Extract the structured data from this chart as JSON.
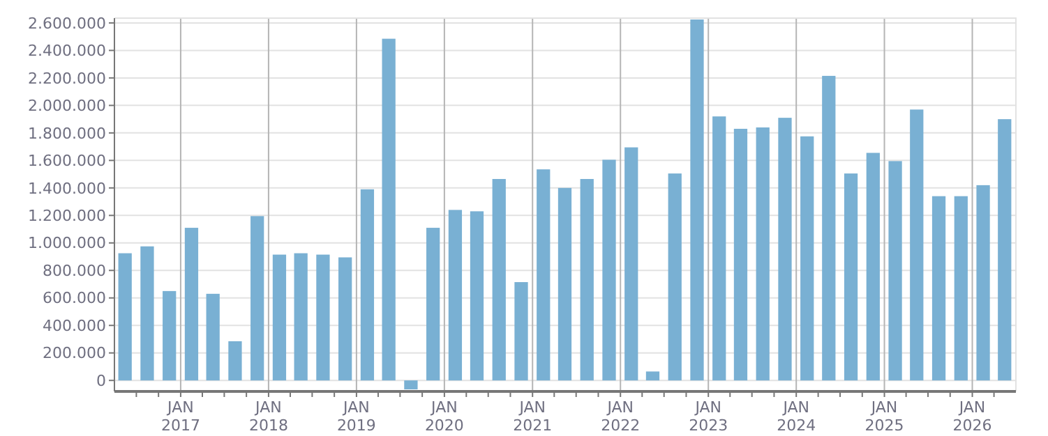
{
  "chart_data": {
    "type": "bar",
    "x": [
      "2016-05-15",
      "2016-08-15",
      "2016-11-15",
      "2017-02-15",
      "2017-05-15",
      "2017-08-15",
      "2017-11-15",
      "2018-02-15",
      "2018-05-15",
      "2018-08-15",
      "2018-11-15",
      "2019-02-15",
      "2019-05-15",
      "2019-08-15",
      "2019-11-15",
      "2020-02-15",
      "2020-05-15",
      "2020-08-15",
      "2020-11-15",
      "2021-02-15",
      "2021-05-15",
      "2021-08-15",
      "2021-11-15",
      "2022-02-15",
      "2022-05-15",
      "2022-08-15",
      "2022-11-15",
      "2023-02-15",
      "2023-05-15",
      "2023-08-15",
      "2023-11-15",
      "2024-02-15",
      "2024-05-15",
      "2024-08-15",
      "2024-11-15",
      "2025-02-15",
      "2025-05-15",
      "2025-08-15",
      "2025-11-15",
      "2026-02-15",
      "2026-05-15"
    ],
    "values": [
      925000,
      975000,
      650000,
      1110000,
      630000,
      285000,
      1195000,
      915000,
      925000,
      915000,
      895000,
      1390000,
      2485000,
      -65000,
      1110000,
      1240000,
      1230000,
      1465000,
      715000,
      1535000,
      1400000,
      1465000,
      1605000,
      1695000,
      65000,
      1505000,
      2625000,
      1920000,
      1830000,
      1840000,
      1910000,
      1775000,
      2215000,
      1505000,
      1655000,
      1595000,
      1970000,
      1340000,
      1340000,
      1420000,
      1900000
    ],
    "color": "#79b0d3",
    "ylim": [
      -80000,
      2635000
    ],
    "yticks": [
      0,
      {
        "value": 200000,
        "label": "200.000"
      },
      {
        "value": 400000,
        "label": "400.000"
      },
      {
        "value": 600000,
        "label": "600.000"
      },
      {
        "value": 800000,
        "label": "800.000"
      },
      {
        "value": 1000000,
        "label": "1.000.000"
      },
      {
        "value": 1200000,
        "label": "1.200.000"
      },
      {
        "value": 1400000,
        "label": "1.400.000"
      },
      {
        "value": 1600000,
        "label": "1.600.000"
      },
      {
        "value": 1800000,
        "label": "1.800.000"
      },
      {
        "value": 2000000,
        "label": "2.000.000"
      },
      {
        "value": 2200000,
        "label": "2.200.000"
      },
      {
        "value": 2400000,
        "label": "2.400.000"
      },
      {
        "value": 2600000,
        "label": "2.600.000"
      }
    ],
    "xlim": [
      "2016-04-01",
      "2026-07-01"
    ],
    "xticks": [
      {
        "value": "2016-07-01",
        "label": null
      },
      {
        "value": "2016-10-01",
        "label": null
      },
      {
        "value": "2017-01-01",
        "label": "JAN 2017"
      },
      {
        "value": "2017-04-01",
        "label": null
      },
      {
        "value": "2017-07-01",
        "label": null
      },
      {
        "value": "2017-10-01",
        "label": null
      },
      {
        "value": "2018-01-01",
        "label": "JAN 2018"
      },
      {
        "value": "2018-04-01",
        "label": null
      },
      {
        "value": "2018-07-01",
        "label": null
      },
      {
        "value": "2018-10-01",
        "label": null
      },
      {
        "value": "2019-01-01",
        "label": "JAN 2019"
      },
      {
        "value": "2019-04-01",
        "label": null
      },
      {
        "value": "2019-07-01",
        "label": null
      },
      {
        "value": "2019-10-01",
        "label": null
      },
      {
        "value": "2020-01-01",
        "label": "JAN 2020"
      },
      {
        "value": "2020-04-01",
        "label": null
      },
      {
        "value": "2020-07-01",
        "label": null
      },
      {
        "value": "2020-10-01",
        "label": null
      },
      {
        "value": "2021-01-01",
        "label": "JAN 2021"
      },
      {
        "value": "2021-04-01",
        "label": null
      },
      {
        "value": "2021-07-01",
        "label": null
      },
      {
        "value": "2021-10-01",
        "label": null
      },
      {
        "value": "2022-01-01",
        "label": "JAN 2022"
      },
      {
        "value": "2022-04-01",
        "label": null
      },
      {
        "value": "2022-07-01",
        "label": null
      },
      {
        "value": "2022-10-01",
        "label": null
      },
      {
        "value": "2023-01-01",
        "label": "JAN 2023"
      },
      {
        "value": "2023-04-01",
        "label": null
      },
      {
        "value": "2023-07-01",
        "label": null
      },
      {
        "value": "2023-10-01",
        "label": null
      },
      {
        "value": "2024-01-01",
        "label": "JAN 2024"
      },
      {
        "value": "2024-04-01",
        "label": null
      },
      {
        "value": "2024-07-01",
        "label": null
      },
      {
        "value": "2024-10-01",
        "label": null
      },
      {
        "value": "2025-01-01",
        "label": "JAN 2025"
      },
      {
        "value": "2025-04-01",
        "label": null
      },
      {
        "value": "2025-07-01",
        "label": null
      },
      {
        "value": "2025-10-01",
        "label": null
      },
      {
        "value": "2026-01-01",
        "label": "JAN 2026"
      },
      {
        "value": "2026-04-01",
        "label": null
      }
    ],
    "grid": true
  }
}
